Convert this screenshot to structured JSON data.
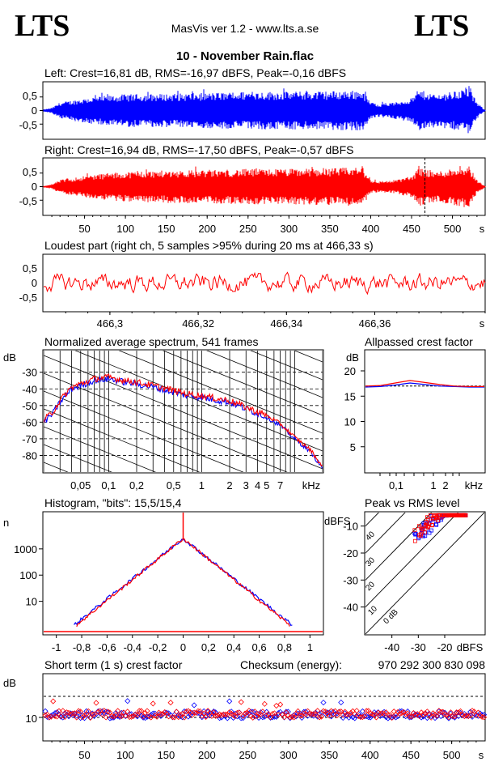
{
  "header": {
    "logo_left": "LTS",
    "logo_right": "LTS",
    "app_title": "MasVis ver 1.2 - www.lts.a.se",
    "file_title": "10 - November Rain.flac"
  },
  "colors": {
    "left": "#0000ff",
    "right": "#ff0000",
    "grid": "#000000"
  },
  "chart_data": [
    {
      "id": "left-waveform",
      "type": "area",
      "title": "Left: Crest=16,81 dB, RMS=-16,97 dBFS, Peak=-0,16 dBFS",
      "y_ticks": [
        "0,5",
        "0",
        "-0,5"
      ],
      "ylim": [
        -1,
        1
      ],
      "xlim": [
        0,
        540
      ],
      "series": [
        {
          "color": "#0000ff",
          "envelope_x": [
            0,
            10,
            20,
            40,
            60,
            80,
            100,
            150,
            200,
            250,
            300,
            350,
            390,
            400,
            410,
            430,
            450,
            460,
            480,
            500,
            520,
            530,
            540
          ],
          "envelope_y": [
            0.04,
            0.1,
            0.3,
            0.4,
            0.5,
            0.55,
            0.6,
            0.62,
            0.65,
            0.7,
            0.7,
            0.72,
            0.75,
            0.3,
            0.25,
            0.3,
            0.45,
            0.75,
            0.6,
            0.7,
            0.85,
            0.3,
            0.02
          ]
        }
      ]
    },
    {
      "id": "right-waveform",
      "type": "area",
      "title": "Right: Crest=16,94 dB, RMS=-17,50 dBFS, Peak=-0,57 dBFS",
      "y_ticks": [
        "0,5",
        "0",
        "-0,5"
      ],
      "ylim": [
        -1,
        1
      ],
      "xlim": [
        0,
        540
      ],
      "x_ticks": [
        "50",
        "100",
        "150",
        "200",
        "250",
        "300",
        "350",
        "400",
        "450",
        "500",
        "s"
      ],
      "marker_x": 466.33,
      "series": [
        {
          "color": "#ff0000",
          "envelope_x": [
            0,
            10,
            20,
            40,
            60,
            80,
            100,
            150,
            200,
            250,
            300,
            350,
            390,
            400,
            410,
            430,
            450,
            460,
            480,
            500,
            520,
            530,
            540
          ],
          "envelope_y": [
            0.03,
            0.08,
            0.25,
            0.35,
            0.45,
            0.5,
            0.55,
            0.6,
            0.62,
            0.65,
            0.66,
            0.68,
            0.72,
            0.25,
            0.2,
            0.25,
            0.4,
            0.72,
            0.55,
            0.68,
            0.8,
            0.25,
            0.02
          ]
        }
      ]
    },
    {
      "id": "loudest-part",
      "type": "line",
      "title": "Loudest part (right ch, 5 samples >95% during 20 ms at 466,33 s)",
      "y_ticks": [
        "0,5",
        "0",
        "-0,5"
      ],
      "ylim": [
        -1,
        1
      ],
      "xlim": [
        466.285,
        466.385
      ],
      "x_ticks": [
        "466,3",
        "466,32",
        "466,34",
        "466,36",
        "s"
      ],
      "series": [
        {
          "color": "#ff0000",
          "amplitude": 0.3
        }
      ]
    },
    {
      "id": "avg-spectrum",
      "type": "line",
      "title": "Normalized average spectrum, 541 frames",
      "ylabel": "dB",
      "xlabel": "kHz",
      "y_ticks": [
        "-30",
        "-40",
        "-50",
        "-60",
        "-70",
        "-80"
      ],
      "x_ticks": [
        "0,05",
        "0,1",
        "0,2",
        "0,5",
        "1",
        "2",
        "3",
        "4",
        "5",
        "7",
        "kHz"
      ],
      "ylim": [
        -90,
        -17
      ],
      "xlim_khz": [
        0.02,
        20
      ],
      "series": [
        {
          "name": "left",
          "color": "#0000ff",
          "freq_khz": [
            0.02,
            0.025,
            0.03,
            0.04,
            0.05,
            0.07,
            0.1,
            0.15,
            0.2,
            0.3,
            0.5,
            0.7,
            1,
            1.5,
            2,
            3,
            5,
            7,
            10,
            15,
            20
          ],
          "db": [
            -60,
            -55,
            -48,
            -40,
            -38,
            -35,
            -34,
            -36,
            -37,
            -39,
            -42,
            -44,
            -45,
            -47,
            -48,
            -52,
            -57,
            -62,
            -70,
            -78,
            -88
          ]
        },
        {
          "name": "right",
          "color": "#ff0000",
          "freq_khz": [
            0.02,
            0.025,
            0.03,
            0.04,
            0.05,
            0.07,
            0.1,
            0.15,
            0.2,
            0.3,
            0.5,
            0.7,
            1,
            1.5,
            2,
            3,
            5,
            7,
            10,
            15,
            20
          ],
          "db": [
            -59,
            -54,
            -47,
            -39,
            -37,
            -34,
            -33,
            -35,
            -36,
            -38,
            -41,
            -43,
            -44,
            -46,
            -47,
            -51,
            -56,
            -61,
            -69,
            -77,
            -87
          ]
        }
      ]
    },
    {
      "id": "allpassed-crest",
      "type": "line",
      "title": "Allpassed crest factor",
      "ylabel": "dB",
      "xlabel": "kHz",
      "y_ticks": [
        "20",
        "15",
        "10",
        "5"
      ],
      "x_ticks": [
        "0,1",
        "1",
        "2",
        "kHz"
      ],
      "ylim": [
        0,
        24
      ],
      "reference_db": 17,
      "series": [
        {
          "name": "left",
          "color": "#0000ff",
          "db": [
            16.8,
            16.9,
            17.2,
            17.6,
            17.3,
            17.0,
            16.9,
            16.8,
            16.8
          ]
        },
        {
          "name": "right",
          "color": "#ff0000",
          "db": [
            17.0,
            17.1,
            17.6,
            18.1,
            17.7,
            17.3,
            17.0,
            16.9,
            16.9
          ]
        }
      ]
    },
    {
      "id": "histogram",
      "type": "line",
      "title": "Histogram, \"bits\": 15,5/15,4",
      "ylabel": "n",
      "y_ticks": [
        "1000",
        "100",
        "10"
      ],
      "y_tick_values": [
        1000,
        100,
        10
      ],
      "x_ticks": [
        "-1",
        "-0,8",
        "-0,6",
        "-0,4",
        "-0,2",
        "0",
        "0,2",
        "0,4",
        "0,6",
        "0,8",
        "1"
      ],
      "xlim": [
        -1.1,
        1.1
      ],
      "peak_n": 2500,
      "series": [
        {
          "name": "left",
          "color": "#0000ff",
          "extent": 0.86
        },
        {
          "name": "right",
          "color": "#ff0000",
          "extent": 0.84
        }
      ]
    },
    {
      "id": "peak-vs-rms",
      "type": "scatter",
      "title": "Peak vs RMS level",
      "ylabel": "dBFS",
      "xlabel": "dBFS",
      "y_ticks": [
        "-10",
        "-20",
        "-30",
        "-40"
      ],
      "x_ticks": [
        "-40",
        "-30",
        "-20",
        "dBFS"
      ],
      "diagonal_labels": [
        "40",
        "30",
        "20",
        "10",
        "0 dB"
      ],
      "xlim": [
        -50,
        -5
      ],
      "ylim": [
        -50,
        -5
      ],
      "series": [
        {
          "name": "left",
          "color": "#0000ff",
          "rms_from": -32,
          "rms_to": -12,
          "crest_mean": 16
        },
        {
          "name": "right",
          "color": "#ff0000",
          "rms_from": -32,
          "rms_to": -12,
          "crest_mean": 17
        }
      ]
    },
    {
      "id": "short-term-crest",
      "type": "scatter",
      "title": "Short term (1 s) crest factor",
      "ylabel": "dB",
      "y_ticks": [
        "10"
      ],
      "x_ticks": [
        "50",
        "100",
        "150",
        "200",
        "250",
        "300",
        "350",
        "400",
        "450",
        "500",
        "s"
      ],
      "xlim": [
        0,
        540
      ],
      "checksum_label": "Checksum (energy):",
      "checksum_value": "970 292 300 830 098",
      "series": [
        {
          "name": "left",
          "color": "#0000ff",
          "mean_db": 11.5
        },
        {
          "name": "right",
          "color": "#ff0000",
          "mean_db": 11.8
        }
      ]
    }
  ]
}
